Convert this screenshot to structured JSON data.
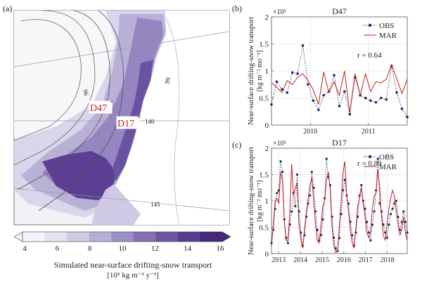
{
  "panel_a": {
    "label": "(a)",
    "contour_labels": [
      "96",
      "99",
      "140",
      "145"
    ],
    "stations": [
      {
        "name": "D47",
        "color": "#c0201a"
      },
      {
        "name": "D17",
        "color": "#c0201a"
      }
    ],
    "colorbar": {
      "ticks": [
        "4",
        "6",
        "8",
        "10",
        "12",
        "14",
        "16"
      ],
      "colors": [
        "#f4f3f9",
        "#e3e1ef",
        "#cfcbe4",
        "#b7afd5",
        "#9c8fc4",
        "#8472b3",
        "#6c559f",
        "#573e8f",
        "#46267f"
      ],
      "label_line1": "Simulated near-surface drifting-snow transport",
      "label_line2": "[10⁵ kg m⁻² y⁻¹]"
    }
  },
  "chart_data": [
    {
      "type": "line",
      "panel": "(b)",
      "title": "D47",
      "ylabel_line1": "Near-surface drifting-snow transport",
      "ylabel_line2": "[kg m⁻² mo⁻¹]",
      "y_multiplier": "×10⁵",
      "ylim": [
        0,
        2
      ],
      "yticks": [
        "0",
        "0.5",
        "1",
        "1.5",
        "2"
      ],
      "xticks": [
        "2010",
        "2011"
      ],
      "grid": true,
      "legend_position": "top-right",
      "annotation": "r = 0.64",
      "x_start_year": 2009.33,
      "x_end_year": 2011.67,
      "series": [
        {
          "name": "OBS",
          "color": "#1a2a6c",
          "style": "dotted-markers",
          "values": [
            0.38,
            0.8,
            0.66,
            0.6,
            0.97,
            0.95,
            1.47,
            0.75,
            0.45,
            0.28,
            0.55,
            0.62,
            0.92,
            0.35,
            0.62,
            0.2,
            0.88,
            0.55,
            0.5,
            0.45,
            0.42,
            0.5,
            0.47,
            1.09,
            0.6,
            0.3,
            0.15
          ]
        },
        {
          "name": "MAR",
          "color": "#c0201a",
          "style": "solid",
          "values": [
            0.78,
            0.7,
            0.6,
            0.82,
            0.75,
            0.88,
            0.95,
            0.82,
            0.65,
            0.38,
            0.98,
            0.6,
            0.8,
            0.55,
            1.0,
            0.22,
            0.95,
            0.55,
            0.95,
            0.62,
            0.8,
            0.78,
            0.85,
            1.12,
            0.85,
            0.58,
            0.85
          ]
        }
      ]
    },
    {
      "type": "line",
      "panel": "(c)",
      "title": "D17",
      "ylabel_line1": "Near-surface drifting-snow transport",
      "ylabel_line2": "[kg m⁻² mo⁻¹]",
      "y_multiplier": "×10⁵",
      "ylim": [
        0,
        2
      ],
      "yticks": [
        "0",
        "0.5",
        "1",
        "1.5",
        "2"
      ],
      "xticks": [
        "2013",
        "2014",
        "2015",
        "2016",
        "2017",
        "2018"
      ],
      "grid": true,
      "legend_position": "top-right",
      "annotation": "r = 0.89",
      "x_start_year": 2012.67,
      "x_end_year": 2018.92,
      "series": [
        {
          "name": "OBS",
          "color": "#1a2a6c",
          "style": "dotted-markers",
          "values": [
            0.2,
            0.45,
            0.85,
            1.15,
            1.2,
            1.75,
            1.55,
            0.65,
            0.3,
            0.2,
            0.55,
            0.8,
            1.15,
            0.9,
            1.5,
            0.8,
            0.4,
            0.15,
            0.35,
            0.7,
            0.95,
            1.1,
            1.55,
            1.25,
            0.8,
            0.45,
            0.25,
            0.35,
            0.65,
            1.05,
            1.8,
            1.45,
            1.3,
            0.7,
            0.3,
            0.1,
            0.05,
            0.3,
            0.75,
            1.2,
            1.4,
            1.1,
            0.95,
            0.6,
            0.35,
            0.15,
            0.4,
            0.7,
            1.1,
            1.3,
            1.0,
            0.85,
            0.6,
            0.4,
            0.25,
            0.55,
            0.8,
            1.2,
            1.8,
            0.95,
            0.8,
            0.55,
            0.4,
            0.3,
            0.55,
            0.75,
            0.85,
            0.95,
            1.0,
            0.7,
            0.45,
            0.6,
            0.8,
            0.6,
            0.4
          ]
        },
        {
          "name": "MAR",
          "color": "#c0201a",
          "style": "solid",
          "values": [
            0.15,
            0.55,
            1.0,
            1.05,
            0.95,
            1.55,
            1.4,
            0.6,
            0.25,
            0.25,
            0.8,
            1.7,
            1.1,
            1.25,
            1.35,
            0.55,
            0.3,
            0.1,
            0.45,
            0.8,
            1.05,
            1.3,
            1.45,
            1.0,
            0.55,
            0.25,
            0.2,
            0.55,
            0.9,
            1.0,
            1.4,
            1.55,
            1.2,
            0.5,
            0.15,
            0.02,
            0.05,
            0.55,
            1.0,
            1.55,
            1.75,
            1.1,
            0.8,
            0.45,
            0.2,
            0.1,
            0.5,
            0.9,
            1.05,
            1.25,
            0.95,
            0.7,
            0.4,
            0.3,
            0.4,
            0.85,
            1.1,
            1.15,
            1.6,
            1.25,
            0.7,
            0.35,
            0.25,
            0.55,
            0.85,
            1.05,
            1.2,
            1.1,
            0.8,
            0.55,
            0.35,
            0.45,
            0.7,
            0.4,
            0.25
          ]
        }
      ]
    }
  ]
}
